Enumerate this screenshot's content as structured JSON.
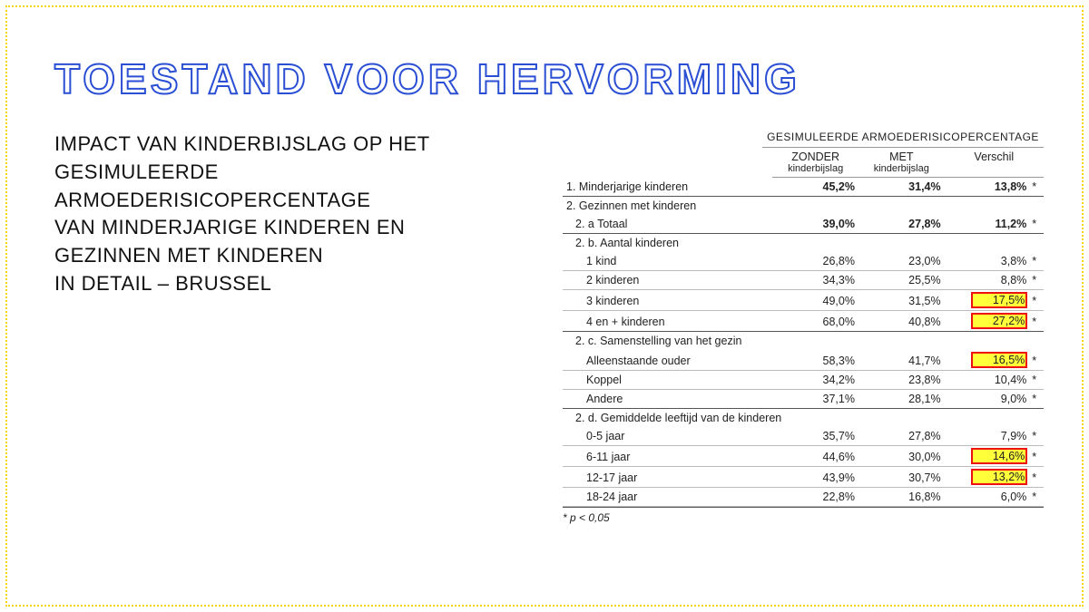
{
  "title": "TOESTAND VOOR HERVORMING",
  "subtitle": "IMPACT VAN KINDERBIJSLAG OP HET\nGESIMULEERDE\nARMOEDERISICOPERCENTAGE\nVAN MINDERJARIGE KINDEREN EN\nGEZINNEN MET KINDEREN\nIN DETAIL – BRUSSEL",
  "table": {
    "supertitle": "GESIMULEERDE ARMOEDERISICOPERCENTAGE",
    "col1_top": "ZONDER",
    "col1_bot": "kinderbijslag",
    "col2_top": "MET",
    "col2_bot": "kinderbijslag",
    "col3": "Verschil",
    "footnote": "* p < 0,05",
    "rows": [
      {
        "label": "1. Minderjarige kinderen",
        "zonder": "45,2%",
        "met": "31,4%",
        "verschil": "13,8%",
        "star": "*",
        "bold": true,
        "bottom": "thick"
      },
      {
        "label": "2. Gezinnen met kinderen",
        "section": true
      },
      {
        "label": "2. a Totaal",
        "indent": 1,
        "zonder": "39,0%",
        "met": "27,8%",
        "verschil": "11,2%",
        "star": "*",
        "bold": true,
        "bottom": "thick"
      },
      {
        "label": "2. b. Aantal kinderen",
        "indent": 1,
        "section": true
      },
      {
        "label": "1 kind",
        "indent": 2,
        "zonder": "26,8%",
        "met": "23,0%",
        "verschil": "3,8%",
        "star": "*"
      },
      {
        "label": "2 kinderen",
        "indent": 2,
        "zonder": "34,3%",
        "met": "25,5%",
        "verschil": "8,8%",
        "star": "*"
      },
      {
        "label": "3 kinderen",
        "indent": 2,
        "zonder": "49,0%",
        "met": "31,5%",
        "verschil": "17,5%",
        "star": "*",
        "hl": true
      },
      {
        "label": "4 en + kinderen",
        "indent": 2,
        "zonder": "68,0%",
        "met": "40,8%",
        "verschil": "27,2%",
        "star": "*",
        "hl": true,
        "bottom": "thick"
      },
      {
        "label": "2. c. Samenstelling van het gezin",
        "indent": 1,
        "section": true
      },
      {
        "label": "Alleenstaande ouder",
        "indent": 2,
        "zonder": "58,3%",
        "met": "41,7%",
        "verschil": "16,5%",
        "star": "*",
        "hl": true
      },
      {
        "label": "Koppel",
        "indent": 2,
        "zonder": "34,2%",
        "met": "23,8%",
        "verschil": "10,4%",
        "star": "*"
      },
      {
        "label": "Andere",
        "indent": 2,
        "zonder": "37,1%",
        "met": "28,1%",
        "verschil": "9,0%",
        "star": "*",
        "bottom": "thick"
      },
      {
        "label": "2. d. Gemiddelde leeftijd van de kinderen",
        "indent": 1,
        "section": true
      },
      {
        "label": "0-5 jaar",
        "indent": 2,
        "zonder": "35,7%",
        "met": "27,8%",
        "verschil": "7,9%",
        "star": "*"
      },
      {
        "label": "6-11 jaar",
        "indent": 2,
        "zonder": "44,6%",
        "met": "30,0%",
        "verschil": "14,6%",
        "star": "*",
        "hl": true
      },
      {
        "label": "12-17 jaar",
        "indent": 2,
        "zonder": "43,9%",
        "met": "30,7%",
        "verschil": "13,2%",
        "star": "*",
        "hl": true
      },
      {
        "label": "18-24 jaar",
        "indent": 2,
        "zonder": "22,8%",
        "met": "16,8%",
        "verschil": "6,0%",
        "star": "*"
      }
    ]
  },
  "colors": {
    "title": "#2b4fd4",
    "highlight_bg": "#ffff3a",
    "highlight_border": "#e11",
    "frame": "#f5d400"
  }
}
